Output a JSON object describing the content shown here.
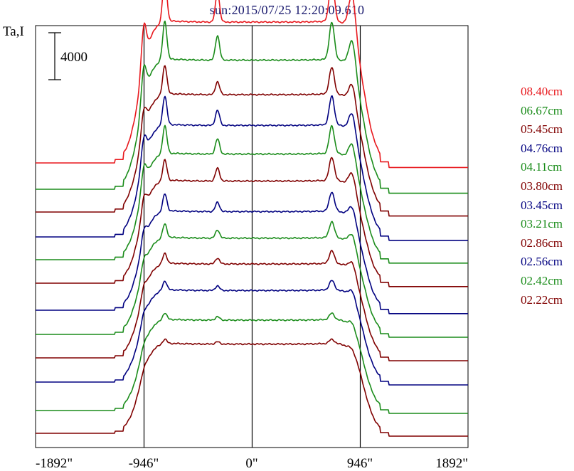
{
  "title": "sun:2015/07/25 12:20:09.610",
  "ylabel": "Ta,I",
  "colors": {
    "red": "#e8171c",
    "green": "#1a8c1a",
    "darkred": "#800000",
    "navy": "#000080"
  },
  "chart_data": {
    "type": "line",
    "title": "sun:2015/07/25 12:20:09.610",
    "ylabel": "Ta,I",
    "xlabel": "",
    "x_unit": "arcsec",
    "xlim": [
      -1892,
      1892
    ],
    "x_ticks": [
      -1892,
      -946,
      0,
      946,
      1892
    ],
    "x_tick_labels": [
      "-1892\"",
      "-946\"",
      "0\"",
      "946\"",
      "1892\""
    ],
    "vertical_lines": [
      -946,
      0,
      946
    ],
    "scale_bar": {
      "value": 4000,
      "label": "4000"
    },
    "stacked_offset": true,
    "series": [
      {
        "name": "08.40cm",
        "color": "#e8171c",
        "baseline": 0,
        "disk_level": 12000,
        "limb_peaks": [
          16000,
          15500
        ],
        "line_peaks": [
          15500,
          15900,
          14500,
          15200
        ]
      },
      {
        "name": "06.67cm",
        "color": "#1a8c1a",
        "baseline": 0,
        "disk_level": 11000,
        "limb_peaks": [
          14500,
          13700
        ],
        "line_peaks": [
          13900,
          14300,
          13100,
          13600
        ]
      },
      {
        "name": "05.45cm",
        "color": "#800000",
        "baseline": 0,
        "disk_level": 10000,
        "limb_peaks": [
          12500,
          11800
        ],
        "line_peaks": [
          11900,
          12500,
          11100,
          11600
        ]
      },
      {
        "name": "04.76cm",
        "color": "#000080",
        "baseline": 0,
        "disk_level": 9500,
        "limb_peaks": [
          12200,
          11400
        ],
        "line_peaks": [
          11500,
          12000,
          10800,
          11000
        ]
      },
      {
        "name": "04.11cm",
        "color": "#1a8c1a",
        "baseline": 0,
        "disk_level": 9000,
        "limb_peaks": [
          11600,
          10700
        ],
        "line_peaks": [
          10800,
          11400,
          10300,
          10600
        ]
      },
      {
        "name": "03.80cm",
        "color": "#800000",
        "baseline": 0,
        "disk_level": 8700,
        "limb_peaks": [
          10900,
          10200
        ],
        "line_peaks": [
          10100,
          10500,
          9800,
          10000
        ]
      },
      {
        "name": "03.45cm",
        "color": "#000080",
        "baseline": 0,
        "disk_level": 8400,
        "limb_peaks": [
          10200,
          9600
        ],
        "line_peaks": [
          9500,
          9900,
          9200,
          9300
        ]
      },
      {
        "name": "03.21cm",
        "color": "#1a8c1a",
        "baseline": 0,
        "disk_level": 8200,
        "limb_peaks": [
          9700,
          9300
        ],
        "line_peaks": [
          9000,
          9400,
          8900,
          9000
        ]
      },
      {
        "name": "02.86cm",
        "color": "#800000",
        "baseline": 0,
        "disk_level": 8000,
        "limb_peaks": [
          9200,
          8900
        ],
        "line_peaks": [
          8700,
          8900,
          8500,
          8600
        ]
      },
      {
        "name": "02.56cm",
        "color": "#000080",
        "baseline": 0,
        "disk_level": 7800,
        "limb_peaks": [
          8700,
          8500
        ],
        "line_peaks": [
          8400,
          8600,
          8200,
          8300
        ]
      },
      {
        "name": "02.42cm",
        "color": "#1a8c1a",
        "baseline": 0,
        "disk_level": 7700,
        "limb_peaks": [
          8300,
          8200
        ],
        "line_peaks": [
          8100,
          8300,
          8000,
          8000
        ]
      },
      {
        "name": "02.22cm",
        "color": "#800000",
        "baseline": 0,
        "disk_level": 7600,
        "limb_peaks": [
          8000,
          7900
        ],
        "line_peaks": [
          7900,
          8000,
          7800,
          7800
        ]
      }
    ]
  }
}
